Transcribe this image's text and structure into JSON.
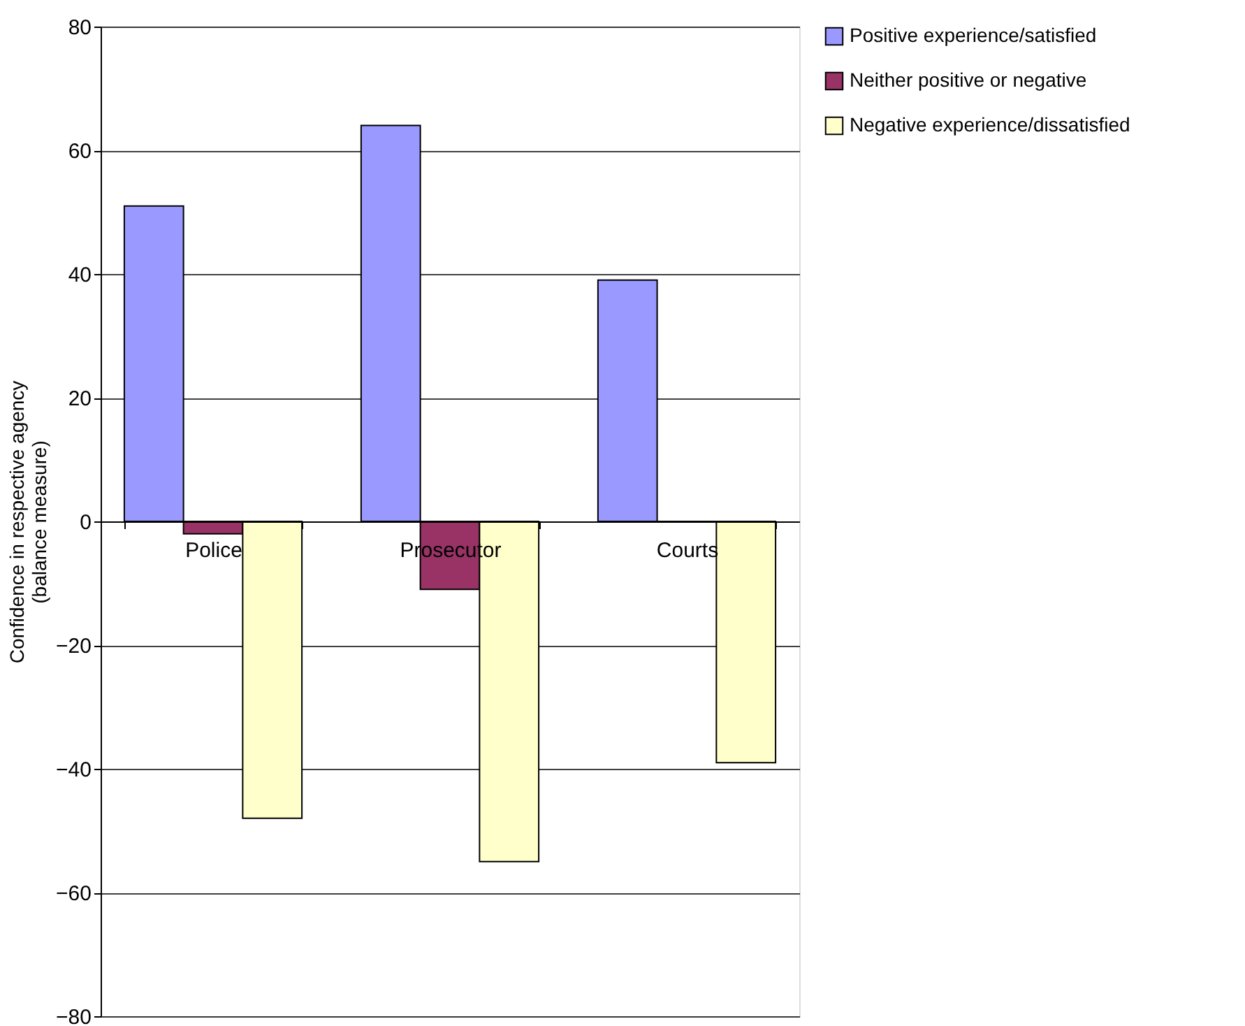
{
  "chart_data": {
    "type": "bar",
    "ylabel": "Confidence in respective agency\n(balance measure)",
    "categories": [
      "Police",
      "Prosecutor",
      "Courts"
    ],
    "series": [
      {
        "name": "Positive experience/satisfied",
        "color": "#9999ff",
        "values": [
          51,
          64,
          39
        ]
      },
      {
        "name": "Neither positive or negative",
        "color": "#993366",
        "values": [
          -2,
          -11,
          0
        ]
      },
      {
        "name": "Negative experience/dissatisfied",
        "color": "#ffffcc",
        "values": [
          -48,
          -55,
          -39
        ]
      }
    ],
    "ylim": [
      -80,
      80
    ],
    "yticks": [
      -80,
      -60,
      -40,
      -20,
      0,
      20,
      40,
      60,
      80
    ],
    "grid": "y",
    "legend": "right"
  }
}
